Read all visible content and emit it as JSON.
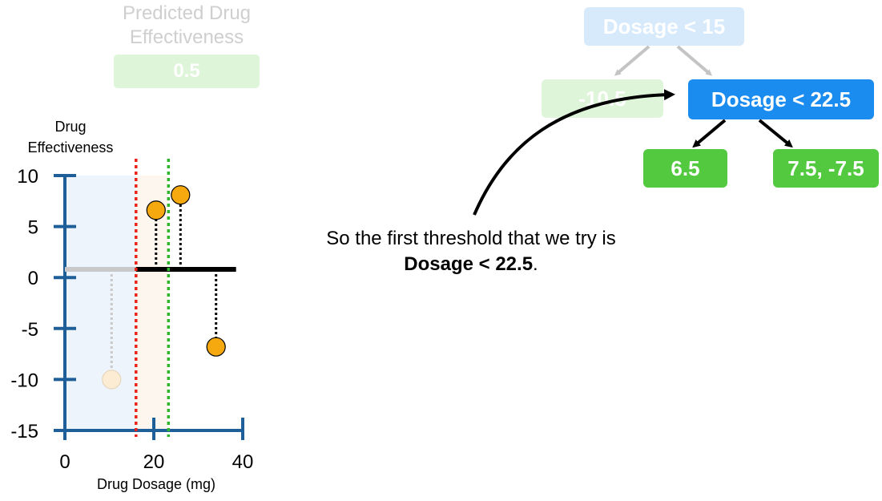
{
  "prediction": {
    "title": "Predicted Drug Effectiveness",
    "value": "0.5"
  },
  "tree": {
    "root": "Dosage < 15",
    "left_leaf": "-10.5",
    "right_node": "Dosage < 22.5",
    "right_left_leaf": "6.5",
    "right_right_leaf": "7.5, -7.5",
    "colors": {
      "node_blue": "#1a8cf0",
      "leaf_green": "#52c93f",
      "faded_blue": "#d6eafc",
      "faded_green": "#dff5d9"
    }
  },
  "caption": {
    "text": "So the first threshold that we try is ",
    "bold": "Dosage < 22.5",
    "end": "."
  },
  "chart_data": {
    "type": "scatter",
    "ylabel": "Drug Effectiveness",
    "xlabel": "Drug Dosage (mg)",
    "xlim": [
      0,
      40
    ],
    "ylim": [
      -15,
      10
    ],
    "x_ticks": [
      0,
      20,
      40
    ],
    "x_tick_labels": [
      "0",
      "20",
      "40"
    ],
    "y_ticks": [
      10,
      5,
      0,
      -5,
      -10,
      -15
    ],
    "y_tick_labels": [
      "10",
      "5",
      "0",
      "-5",
      "-10",
      "-15"
    ],
    "points": [
      {
        "x": 10.5,
        "y": -10,
        "faded": true
      },
      {
        "x": 20.5,
        "y": 6.6,
        "faded": false
      },
      {
        "x": 26,
        "y": 8.1,
        "faded": false
      },
      {
        "x": 34,
        "y": -6.8,
        "faded": false
      }
    ],
    "prediction_lines": [
      {
        "x0": 0,
        "x1": 16,
        "y": 0.8,
        "color": "#c8c8c8"
      },
      {
        "x0": 16,
        "x1": 38.5,
        "y": 0.8,
        "color": "#000000"
      }
    ],
    "thresholds": [
      {
        "x": 16,
        "color": "#e8231a"
      },
      {
        "x": 23.3,
        "color": "#2fb52b"
      }
    ],
    "shaded_regions": [
      {
        "x0": 0,
        "x1": 16,
        "color": "#eef4fb"
      },
      {
        "x0": 16,
        "x1": 23.3,
        "color": "#fcf6ee"
      }
    ]
  }
}
